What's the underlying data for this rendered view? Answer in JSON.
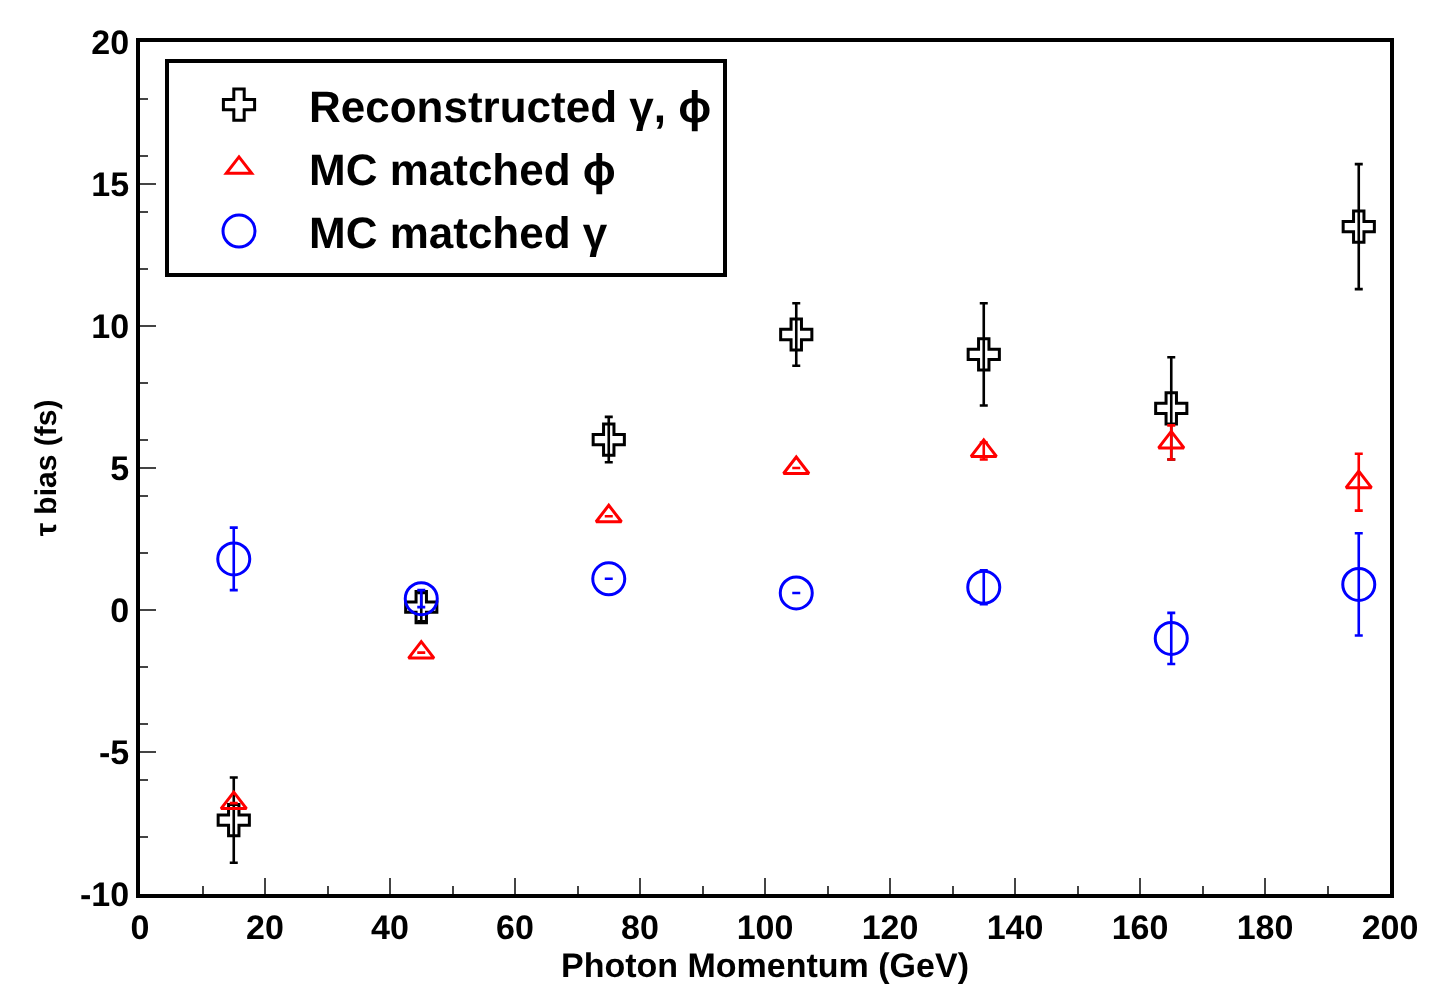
{
  "chart_data": {
    "type": "scatter",
    "xlabel": "Photon Momentum (GeV)",
    "ylabel": "τ bias (fs)",
    "x": [
      15,
      45,
      75,
      105,
      135,
      165,
      195
    ],
    "series": [
      {
        "name": "Reconstructed γ, ϕ",
        "color": "#000000",
        "marker": "cross",
        "values": [
          -7.4,
          0.1,
          6.0,
          9.7,
          9.0,
          7.1,
          13.5
        ],
        "errors": [
          1.5,
          0.5,
          0.8,
          1.1,
          1.8,
          1.8,
          2.2
        ]
      },
      {
        "name": "MC matched ϕ",
        "color": "#ff0000",
        "marker": "triangle",
        "values": [
          -6.8,
          -1.5,
          3.3,
          5.0,
          5.6,
          5.9,
          4.5
        ],
        "errors": [
          null,
          null,
          null,
          null,
          0.3,
          0.6,
          1.0
        ]
      },
      {
        "name": "MC matched γ",
        "color": "#0000ff",
        "marker": "circle",
        "values": [
          1.8,
          0.4,
          1.1,
          0.6,
          0.8,
          -1.0,
          0.9
        ],
        "errors": [
          1.1,
          0.3,
          null,
          null,
          0.6,
          0.9,
          1.8
        ]
      }
    ],
    "xlim": [
      0,
      200
    ],
    "xticks": [
      0,
      20,
      40,
      60,
      80,
      100,
      120,
      140,
      160,
      180,
      200
    ],
    "ylim": [
      -10,
      20
    ],
    "yticks": [
      -10,
      -5,
      0,
      5,
      10,
      15,
      20
    ],
    "legend": "top left"
  }
}
